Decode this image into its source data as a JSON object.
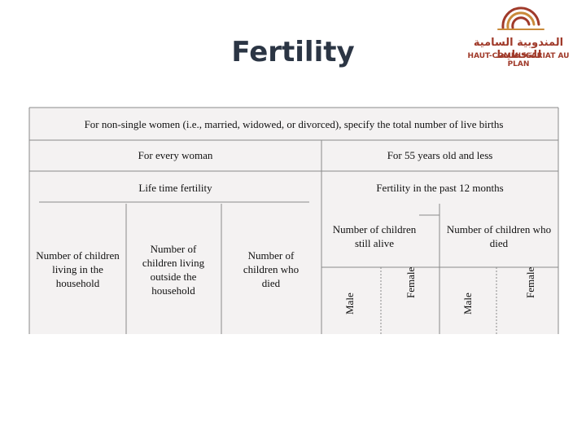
{
  "header": {
    "title": "Fertility",
    "logo": {
      "arabic": "المندوبية السامية للتخطيط",
      "name": "HAUT-COMMISSARIAT AU PLAN"
    }
  },
  "table": {
    "heading": "For non-single women (i.e., married, widowed, or divorced), specify the total number of live births",
    "groups": [
      "For every woman",
      "For 55 years old and less"
    ],
    "subgroups": [
      "Life time fertility",
      "Fertility in the past 12 months"
    ],
    "columns": [
      "Number of children living in the household",
      "Number of children living outside the household",
      "Number of children who died"
    ],
    "past_columns": [
      {
        "label": "Number of children still alive",
        "sub": [
          "Male",
          "Female"
        ]
      },
      {
        "label": "Number of children who died",
        "sub": [
          "Male",
          "Female"
        ]
      }
    ]
  }
}
